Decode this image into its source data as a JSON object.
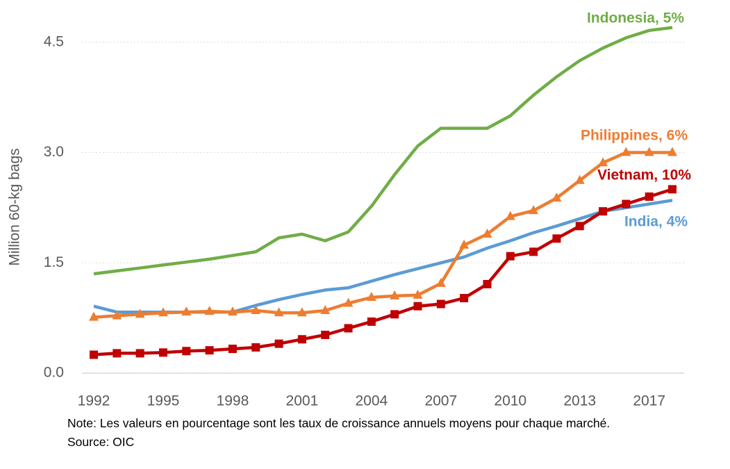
{
  "chart_data": {
    "type": "line",
    "y_label": "Million 60-kg bags",
    "note": "Note: Les valeurs en pourcentage sont les taux de croissance annuels moyens pour chaque marché.",
    "source": "Source: OIC",
    "categories": [
      "1992",
      null,
      null,
      "1995",
      null,
      null,
      "1998",
      null,
      null,
      "2001",
      null,
      null,
      "2004",
      null,
      null,
      "2007",
      null,
      null,
      "2010",
      null,
      null,
      "2013",
      null,
      null,
      "2017",
      null
    ],
    "ylim": [
      0,
      4.8
    ],
    "yticks": [
      {
        "value": 0,
        "label": "0.0"
      },
      1.5,
      {
        "value": 3,
        "label": "3.0"
      },
      4.5
    ],
    "grid": true,
    "series": [
      {
        "name": "Indonesia, 5%",
        "color": "#70ad47",
        "marker": "none",
        "values": [
          1.35,
          1.39,
          1.43,
          1.47,
          1.51,
          1.55,
          1.6,
          1.65,
          1.84,
          1.89,
          1.8,
          1.92,
          2.27,
          2.7,
          3.09,
          3.33,
          3.33,
          3.33,
          3.5,
          3.78,
          4.03,
          4.25,
          4.42,
          4.56,
          4.66,
          4.7
        ]
      },
      {
        "name": "India, 4%",
        "color": "#5b9bd5",
        "marker": "none",
        "values": [
          0.91,
          0.83,
          0.83,
          0.83,
          0.83,
          0.83,
          0.83,
          0.92,
          1.0,
          1.07,
          1.13,
          1.16,
          1.25,
          1.34,
          1.42,
          1.5,
          1.58,
          1.7,
          1.8,
          1.91,
          2.0,
          2.1,
          2.2,
          2.25,
          2.3,
          2.35
        ]
      },
      {
        "name": "Philippines, 6%",
        "color": "#ed7d31",
        "marker": "triangle",
        "values": [
          0.76,
          0.78,
          0.8,
          0.82,
          0.83,
          0.84,
          0.83,
          0.85,
          0.82,
          0.82,
          0.85,
          0.95,
          1.03,
          1.05,
          1.06,
          1.22,
          1.74,
          1.89,
          2.13,
          2.21,
          2.38,
          2.62,
          2.86,
          3.0,
          3.0,
          3.0
        ]
      },
      {
        "name": "Vietnam, 10%",
        "color": "#c00000",
        "marker": "square",
        "values": [
          0.25,
          0.27,
          0.27,
          0.28,
          0.3,
          0.31,
          0.33,
          0.35,
          0.4,
          0.46,
          0.52,
          0.61,
          0.7,
          0.8,
          0.91,
          0.94,
          1.02,
          1.21,
          1.59,
          1.65,
          1.83,
          2.0,
          2.2,
          2.3,
          2.4,
          2.5
        ]
      }
    ]
  }
}
